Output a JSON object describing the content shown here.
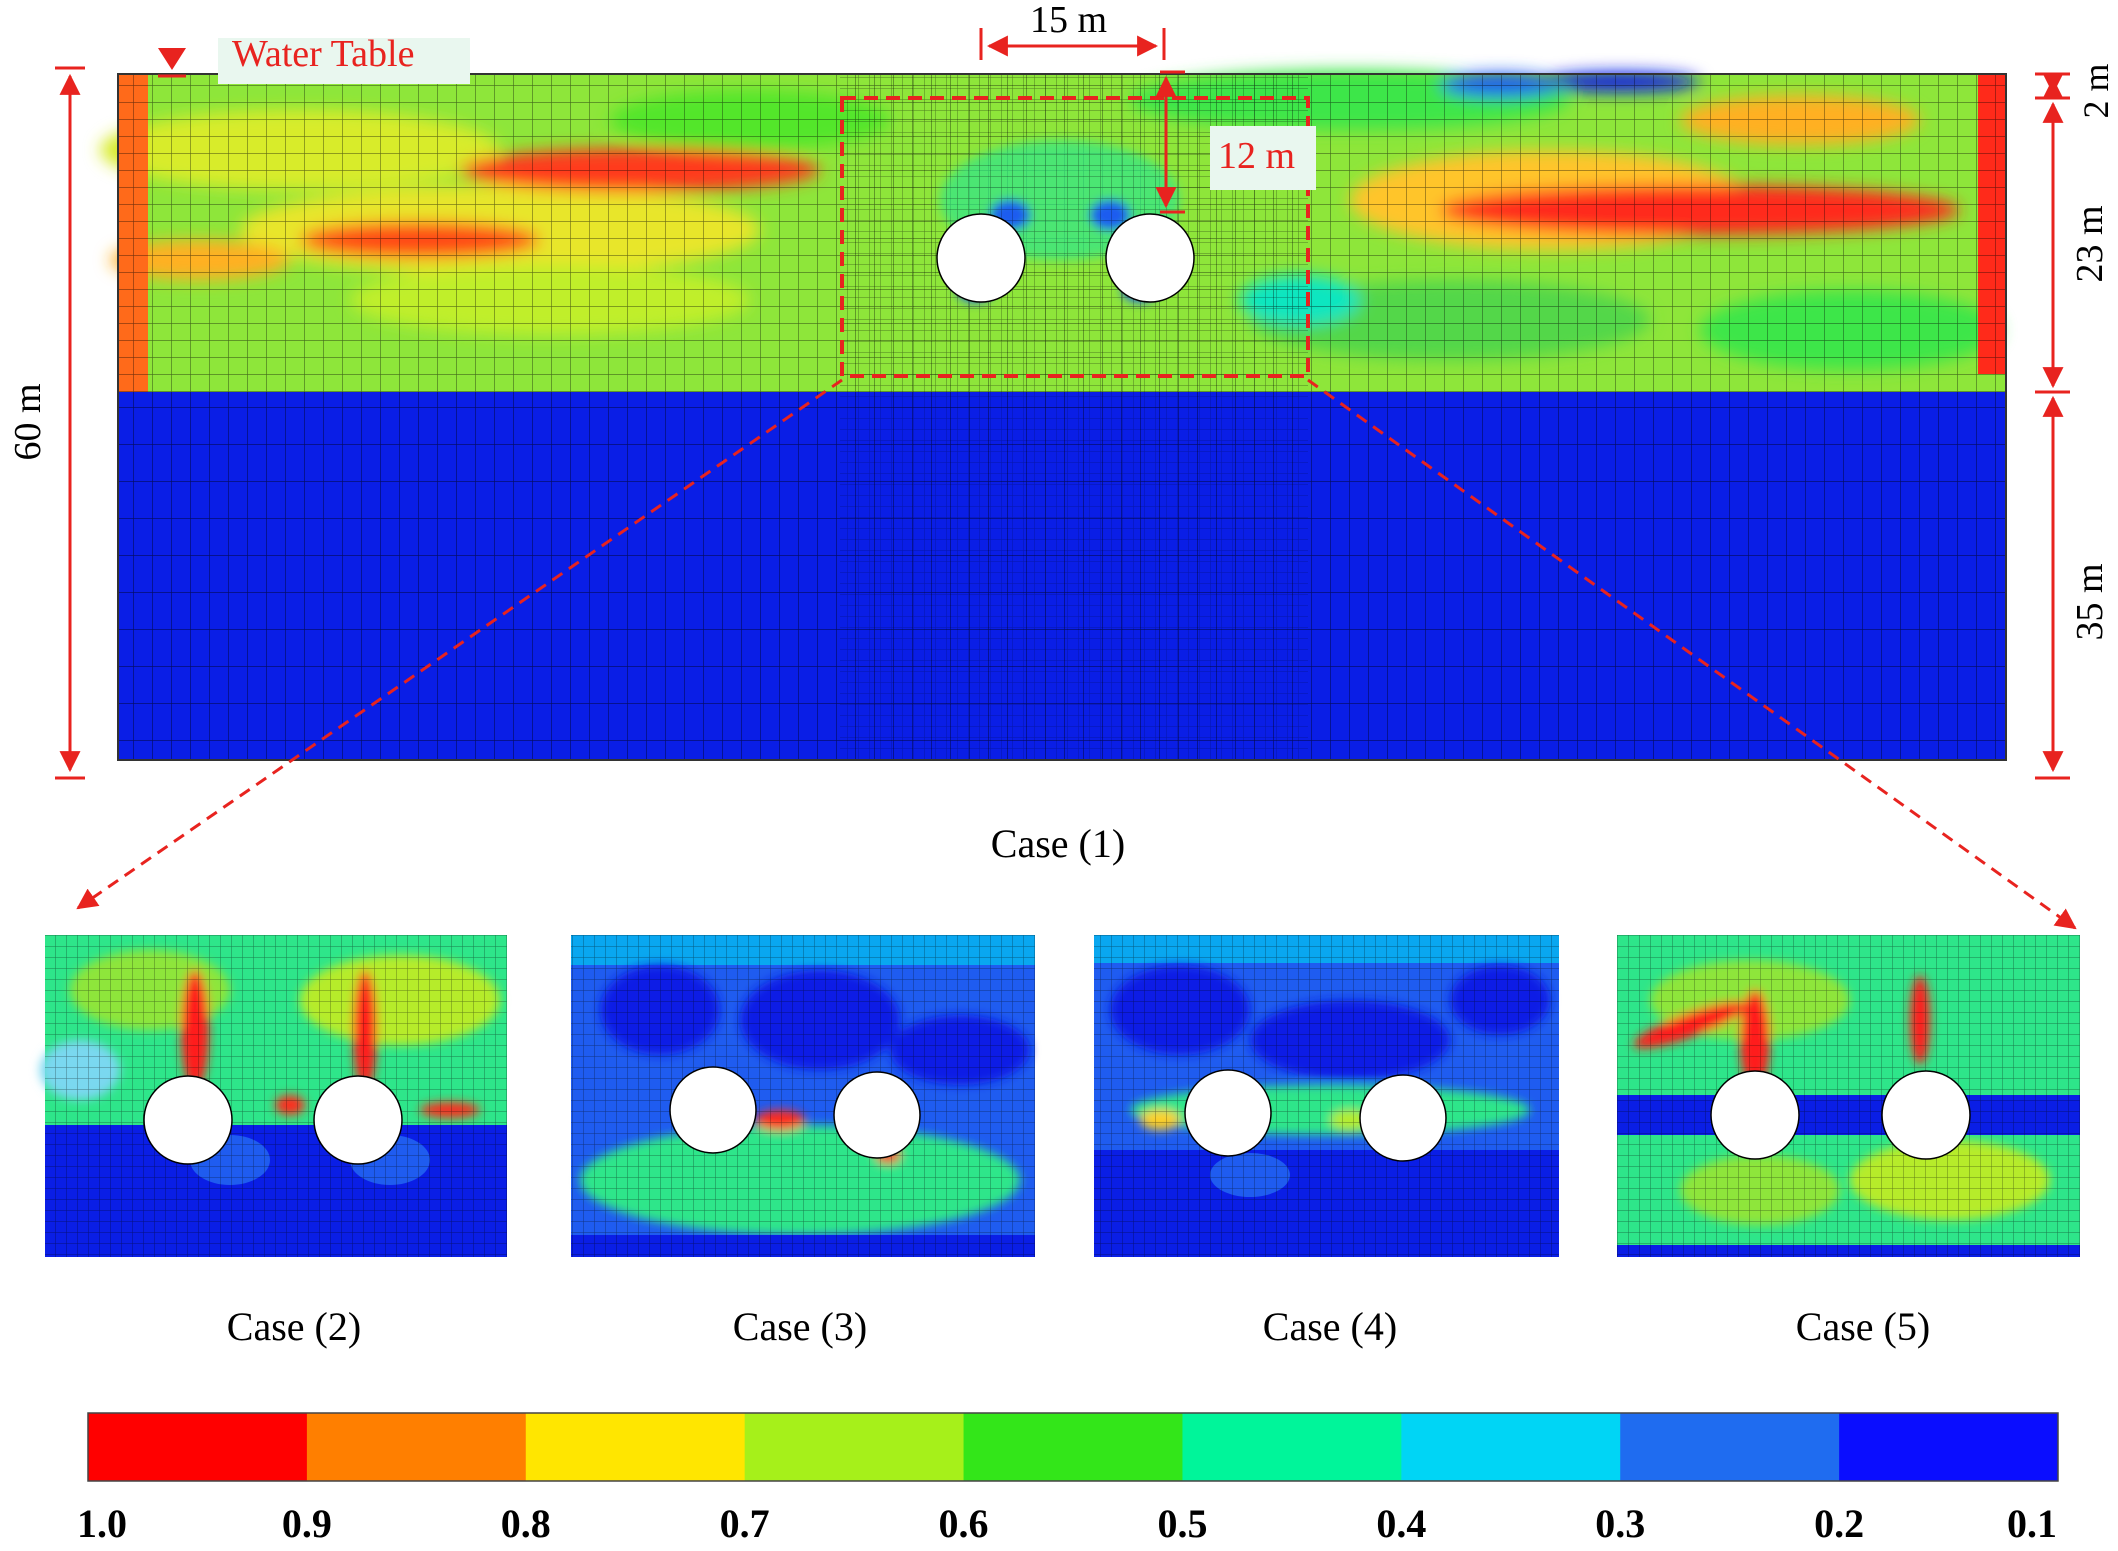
{
  "main_model": {
    "water_table_label": "Water Table",
    "case_label": "Case (1)",
    "dims": {
      "total_height": "60 m",
      "spacing": "15 m",
      "cover": "12 m",
      "top_layer": "2 m",
      "middle_layer": "23 m",
      "bottom_layer": "35 m"
    }
  },
  "zoom_cases": [
    {
      "label": "Case (2)"
    },
    {
      "label": "Case (3)"
    },
    {
      "label": "Case (4)"
    },
    {
      "label": "Case (5)"
    }
  ],
  "colorbar": {
    "colors": [
      "#ff0000",
      "#ff7f00",
      "#ffe600",
      "#a6f01a",
      "#33e619",
      "#00f59a",
      "#00d5f5",
      "#1f6cf0",
      "#0a0dff"
    ],
    "ticks": [
      "1.0",
      "0.9",
      "0.8",
      "0.7",
      "0.6",
      "0.5",
      "0.4",
      "0.3",
      "0.2",
      "0.1"
    ]
  },
  "colors": {
    "annotation": "#e8231f",
    "low": "#0a1ee6",
    "mid": "#2dd94a",
    "high": "#ff1a1a"
  }
}
